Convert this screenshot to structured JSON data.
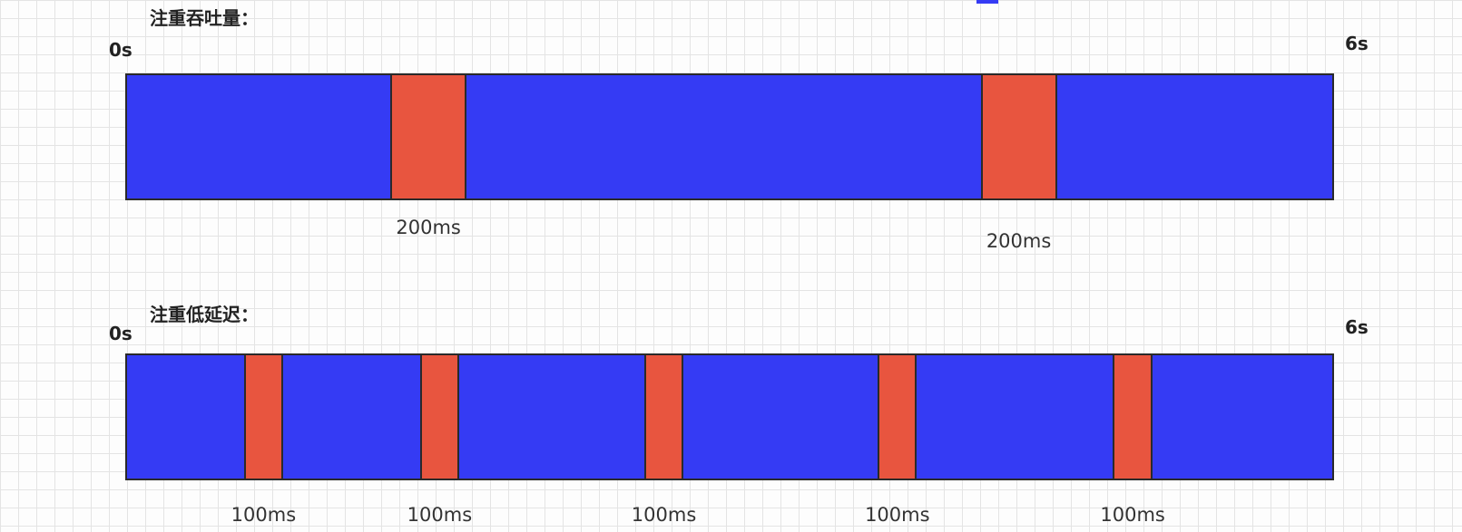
{
  "colors": {
    "run": "#353bf4",
    "pause": "#e8553f",
    "border": "#2a2a2a"
  },
  "sections": [
    {
      "title": "注重吞吐量：",
      "start_label": "0s",
      "end_label": "6s",
      "pauses": [
        {
          "start": 1.316,
          "end": 1.694,
          "label": "200ms"
        },
        {
          "start": 4.246,
          "end": 4.624,
          "label": "200ms"
        }
      ]
    },
    {
      "title": "注重低延迟：",
      "start_label": "0s",
      "end_label": "6s",
      "pauses": [
        {
          "start": 0.589,
          "end": 0.784,
          "label": "100ms"
        },
        {
          "start": 1.463,
          "end": 1.658,
          "label": "100ms"
        },
        {
          "start": 2.576,
          "end": 2.771,
          "label": "100ms"
        },
        {
          "start": 3.735,
          "end": 3.93,
          "label": "100ms"
        },
        {
          "start": 4.903,
          "end": 5.098,
          "label": "100ms"
        }
      ]
    }
  ]
}
